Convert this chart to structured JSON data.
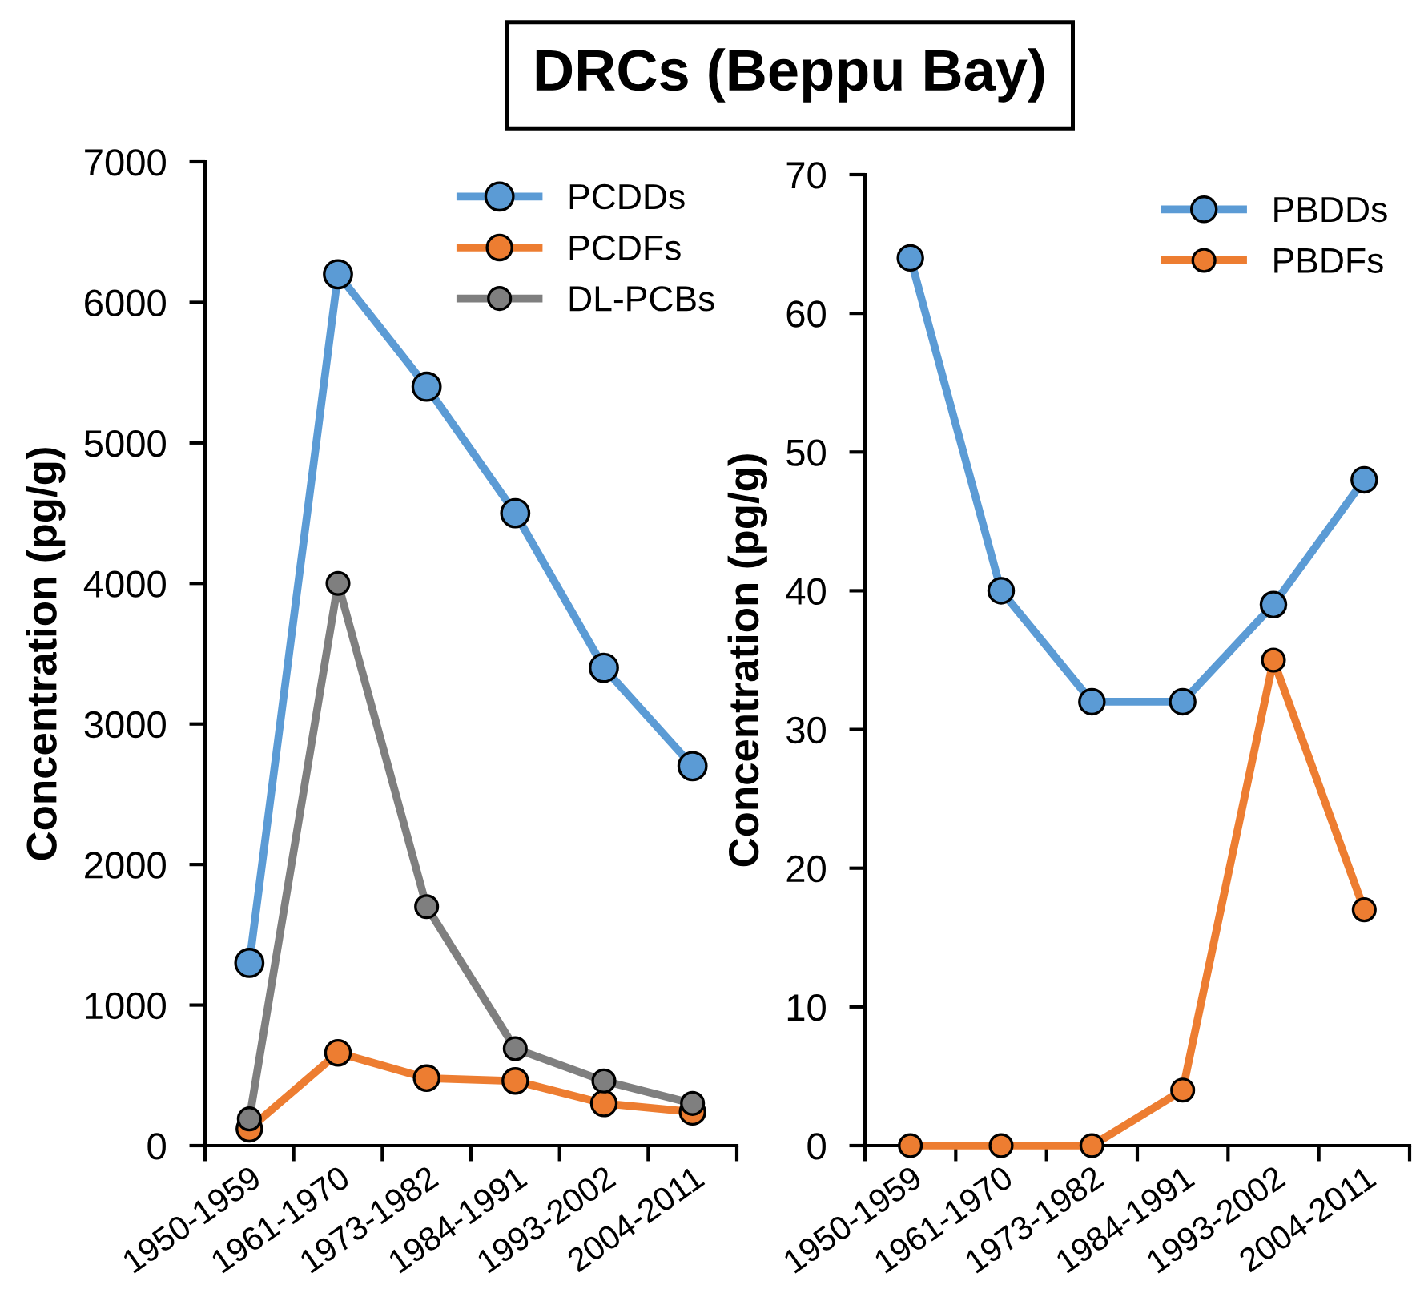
{
  "chart_data": [
    {
      "type": "line",
      "title": "DRCs (Beppu Bay)",
      "ylabel": "Concentration (pg/g)",
      "categories": [
        "1950-1959",
        "1961-1970",
        "1973-1982",
        "1984-1991",
        "1993-2002",
        "2004-2011"
      ],
      "ylim": [
        0,
        7000
      ],
      "yticks": [
        0,
        1000,
        2000,
        3000,
        4000,
        5000,
        6000,
        7000
      ],
      "grid": false,
      "legend": "top right",
      "marker": "circle",
      "line_style": "solid",
      "series": [
        {
          "name": "PCDDs",
          "color": "#5b9bd5",
          "values": [
            1300,
            6200,
            5400,
            4500,
            3400,
            2700
          ]
        },
        {
          "name": "PCDFs",
          "color": "#ed7d31",
          "values": [
            120,
            660,
            480,
            460,
            300,
            240
          ]
        },
        {
          "name": "DL-PCBs",
          "color": "#7f7f7f",
          "values": [
            190,
            4000,
            1700,
            690,
            460,
            300
          ]
        }
      ]
    },
    {
      "type": "line",
      "ylabel": "Concentration (pg/g)",
      "categories": [
        "1950-1959",
        "1961-1970",
        "1973-1982",
        "1984-1991",
        "1993-2002",
        "2004-2011"
      ],
      "ylim": [
        0,
        70
      ],
      "yticks": [
        0,
        10,
        20,
        30,
        40,
        50,
        60,
        70
      ],
      "grid": false,
      "legend": "top right",
      "marker": "circle",
      "line_style": "solid",
      "series": [
        {
          "name": "PBDDs",
          "color": "#5b9bd5",
          "values": [
            64,
            40,
            32,
            32,
            39,
            48
          ]
        },
        {
          "name": "PBDFs",
          "color": "#ed7d31",
          "values": [
            0,
            0,
            0,
            4,
            35,
            17
          ]
        }
      ]
    }
  ]
}
